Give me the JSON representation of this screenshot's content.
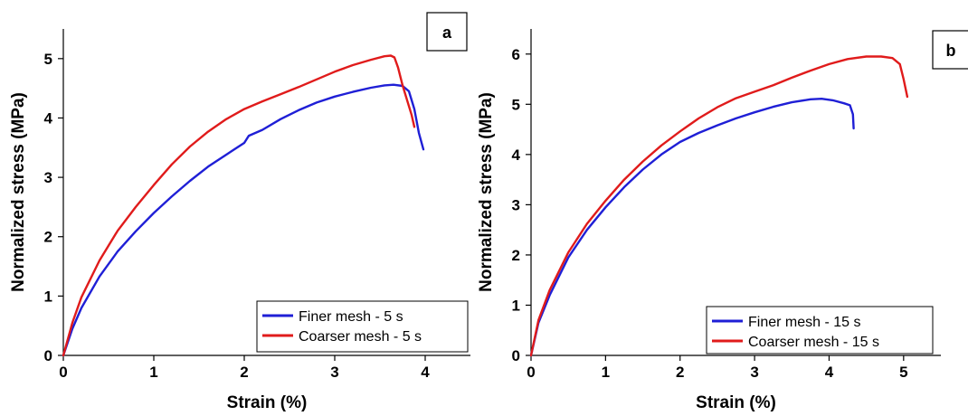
{
  "chart_data": [
    {
      "type": "line",
      "panel_label": "a",
      "xlabel": "Strain (%)",
      "ylabel": "Normalized stress (MPa)",
      "xlim": [
        0,
        4.5
      ],
      "ylim": [
        0,
        5.5
      ],
      "xticks": [
        "0",
        "1",
        "2",
        "3",
        "4"
      ],
      "yticks": [
        "0",
        "1",
        "2",
        "3",
        "4",
        "5"
      ],
      "grid": false,
      "legend_position": "bottom-right",
      "series": [
        {
          "name": "Finer mesh - 5 s",
          "color": "#1f1fd6",
          "x": [
            0,
            0.1,
            0.2,
            0.4,
            0.6,
            0.8,
            1.0,
            1.2,
            1.4,
            1.6,
            1.8,
            2.0,
            2.05,
            2.2,
            2.4,
            2.6,
            2.8,
            3.0,
            3.2,
            3.4,
            3.55,
            3.65,
            3.75,
            3.82,
            3.88,
            3.93,
            3.98
          ],
          "y": [
            0,
            0.45,
            0.8,
            1.33,
            1.75,
            2.09,
            2.4,
            2.68,
            2.94,
            3.18,
            3.38,
            3.58,
            3.7,
            3.8,
            3.98,
            4.13,
            4.26,
            4.36,
            4.44,
            4.51,
            4.55,
            4.56,
            4.54,
            4.45,
            4.15,
            3.75,
            3.47
          ]
        },
        {
          "name": "Coarser mesh - 5 s",
          "color": "#e01b1b",
          "x": [
            0,
            0.1,
            0.2,
            0.4,
            0.6,
            0.8,
            1.0,
            1.2,
            1.4,
            1.6,
            1.8,
            2.0,
            2.2,
            2.4,
            2.6,
            2.8,
            3.0,
            3.2,
            3.4,
            3.55,
            3.62,
            3.66,
            3.7,
            3.75,
            3.8,
            3.85,
            3.88
          ],
          "y": [
            0,
            0.55,
            0.98,
            1.6,
            2.1,
            2.5,
            2.87,
            3.22,
            3.52,
            3.77,
            3.98,
            4.15,
            4.28,
            4.4,
            4.52,
            4.65,
            4.78,
            4.89,
            4.98,
            5.04,
            5.05,
            5.02,
            4.85,
            4.55,
            4.3,
            4.05,
            3.85
          ]
        }
      ]
    },
    {
      "type": "line",
      "panel_label": "b",
      "xlabel": "Strain (%)",
      "ylabel": "Normalized stress (MPa)",
      "xlim": [
        0,
        5.5
      ],
      "ylim": [
        0,
        6.5
      ],
      "xticks": [
        "0",
        "1",
        "2",
        "3",
        "4",
        "5"
      ],
      "yticks": [
        "0",
        "1",
        "2",
        "3",
        "4",
        "5",
        "6"
      ],
      "grid": false,
      "legend_position": "bottom-right",
      "series": [
        {
          "name": "Finer mesh - 15 s",
          "color": "#1f1fd6",
          "x": [
            0,
            0.1,
            0.25,
            0.5,
            0.75,
            1.0,
            1.25,
            1.5,
            1.75,
            2.0,
            2.25,
            2.5,
            2.75,
            3.0,
            3.25,
            3.5,
            3.75,
            3.9,
            4.05,
            4.2,
            4.28,
            4.32,
            4.33
          ],
          "y": [
            0,
            0.65,
            1.2,
            1.95,
            2.5,
            2.95,
            3.35,
            3.7,
            4.0,
            4.25,
            4.43,
            4.58,
            4.72,
            4.84,
            4.95,
            5.04,
            5.1,
            5.11,
            5.08,
            5.02,
            4.98,
            4.8,
            4.52
          ]
        },
        {
          "name": "Coarser mesh - 15 s",
          "color": "#e01b1b",
          "x": [
            0,
            0.1,
            0.25,
            0.5,
            0.75,
            1.0,
            1.25,
            1.5,
            1.75,
            2.0,
            2.25,
            2.5,
            2.75,
            3.0,
            3.25,
            3.5,
            3.75,
            4.0,
            4.25,
            4.5,
            4.7,
            4.85,
            4.95,
            5.0,
            5.05
          ],
          "y": [
            0,
            0.7,
            1.3,
            2.05,
            2.62,
            3.08,
            3.5,
            3.86,
            4.18,
            4.46,
            4.72,
            4.94,
            5.12,
            5.25,
            5.38,
            5.53,
            5.67,
            5.8,
            5.9,
            5.95,
            5.95,
            5.92,
            5.8,
            5.5,
            5.15
          ]
        }
      ]
    }
  ]
}
